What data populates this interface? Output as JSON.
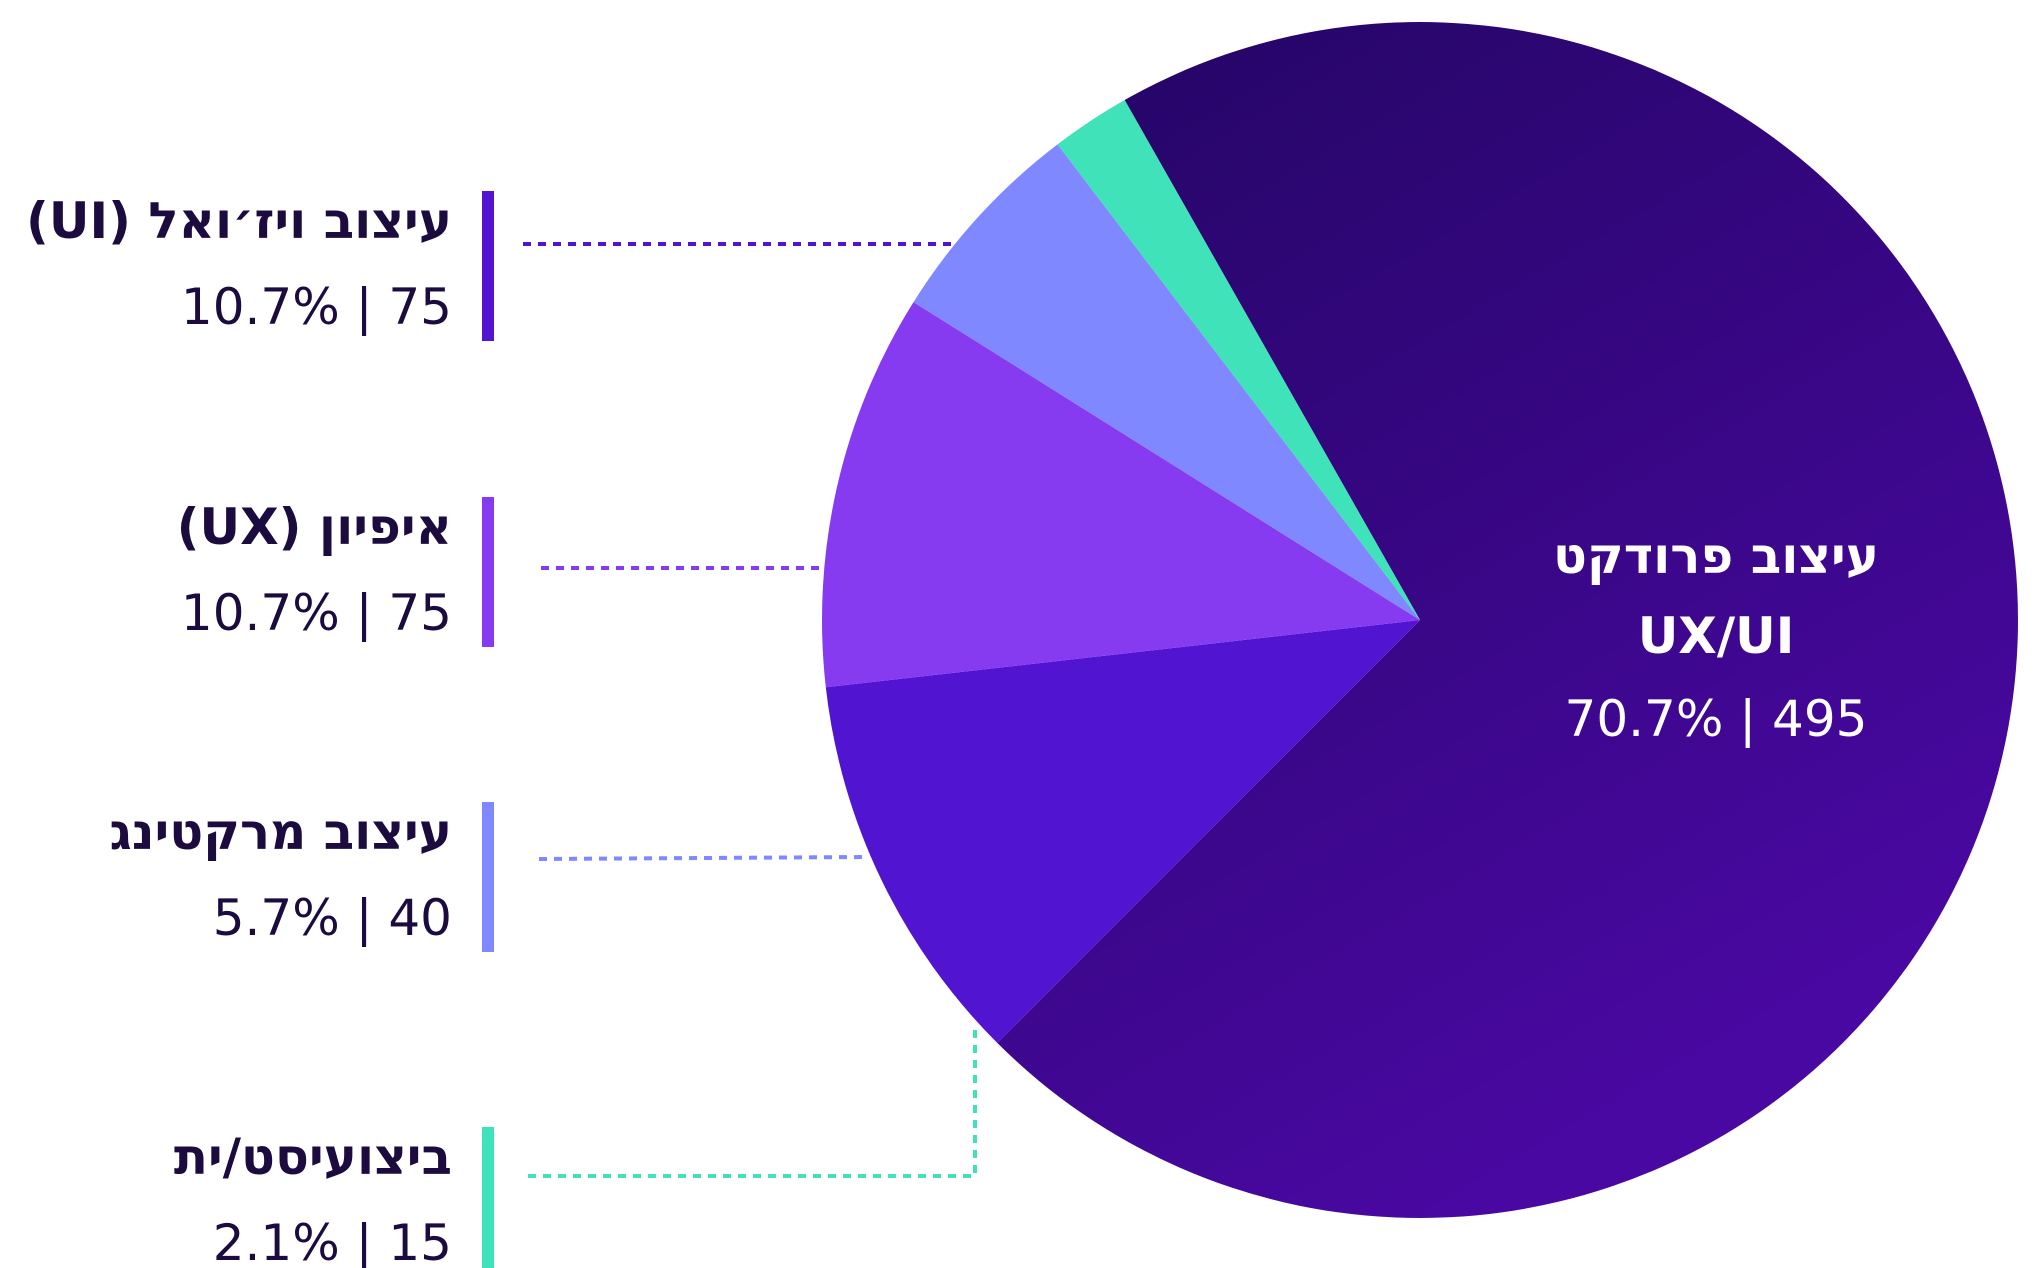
{
  "chart_data": {
    "type": "pie",
    "categories": [
      "עיצוב פרודקט UX/UI",
      "עיצוב ויז׳ואל (UI)",
      "איפיון (UX)",
      "עיצוב מרקטינג",
      "ביצועיסט/ית"
    ],
    "values": [
      495,
      75,
      75,
      40,
      15
    ],
    "value_labels": [
      "495 | 70.7%",
      "75 | 10.7%",
      "75 | 10.7%",
      "40 | 5.7%",
      "15 | 2.1%"
    ],
    "colors": [
      "#33087f",
      "#5115d1",
      "#873bf0",
      "#8088ff",
      "#40e2b9"
    ]
  }
}
